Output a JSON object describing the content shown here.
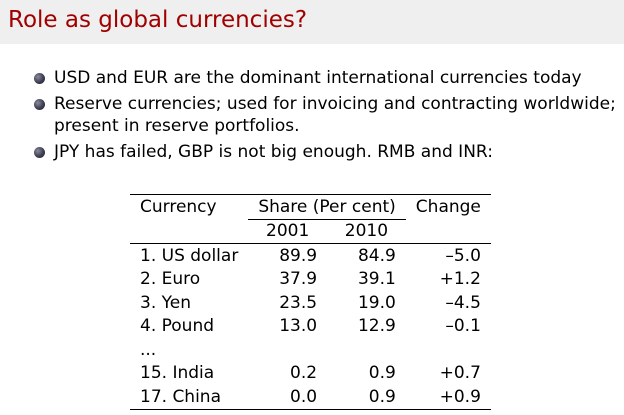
{
  "slide": {
    "title": "Role as global currencies?",
    "bullets": [
      "USD and EUR are the dominant international currencies today",
      "Reserve currencies; used for invoicing and contracting worldwide; present in reserve portfolios.",
      "JPY has failed, GBP is not big enough. RMB and INR:"
    ]
  },
  "table": {
    "headers": {
      "currency": "Currency",
      "share": "Share (Per cent)",
      "change": "Change",
      "year1": "2001",
      "year2": "2010"
    },
    "rows": [
      {
        "currency": "1. US dollar",
        "y2001": "89.9",
        "y2010": "84.9",
        "change": "–5.0"
      },
      {
        "currency": "2. Euro",
        "y2001": "37.9",
        "y2010": "39.1",
        "change": "+1.2"
      },
      {
        "currency": "3. Yen",
        "y2001": "23.5",
        "y2010": "19.0",
        "change": "–4.5"
      },
      {
        "currency": "4. Pound",
        "y2001": "13.0",
        "y2010": "12.9",
        "change": "–0.1"
      },
      {
        "currency": "...",
        "y2001": "",
        "y2010": "",
        "change": ""
      },
      {
        "currency": "15. India",
        "y2001": "0.2",
        "y2010": "0.9",
        "change": "+0.7"
      },
      {
        "currency": "17. China",
        "y2001": "0.0",
        "y2010": "0.9",
        "change": "+0.9"
      }
    ]
  }
}
